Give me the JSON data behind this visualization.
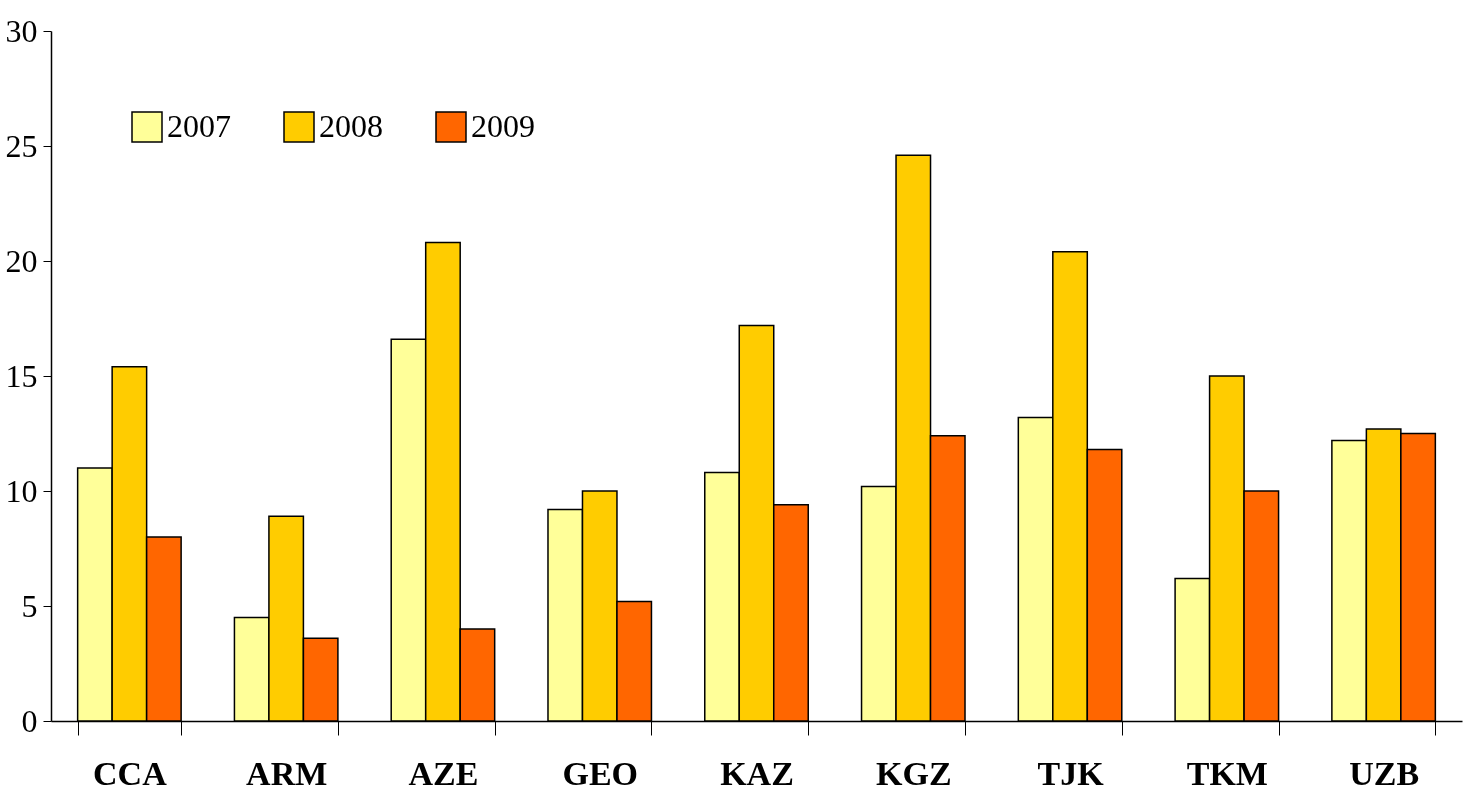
{
  "chart_data": {
    "type": "bar",
    "categories": [
      "CCA",
      "ARM",
      "AZE",
      "GEO",
      "KAZ",
      "KGZ",
      "TJK",
      "TKM",
      "UZB"
    ],
    "series": [
      {
        "name": "2007",
        "color": "#ffff99",
        "values": [
          11.0,
          4.5,
          16.6,
          9.2,
          10.8,
          10.2,
          13.2,
          6.2,
          12.2
        ]
      },
      {
        "name": "2008",
        "color": "#ffcc00",
        "values": [
          15.4,
          8.9,
          20.8,
          10.0,
          17.2,
          24.6,
          20.4,
          15.0,
          12.7
        ]
      },
      {
        "name": "2009",
        "color": "#ff6600",
        "values": [
          8.0,
          3.6,
          4.0,
          5.2,
          9.4,
          12.4,
          11.8,
          10.0,
          12.5
        ]
      }
    ],
    "ylim": [
      0,
      30
    ],
    "yticks": [
      0,
      5,
      10,
      15,
      20,
      25,
      30
    ],
    "grid": false,
    "legend": "top left"
  }
}
